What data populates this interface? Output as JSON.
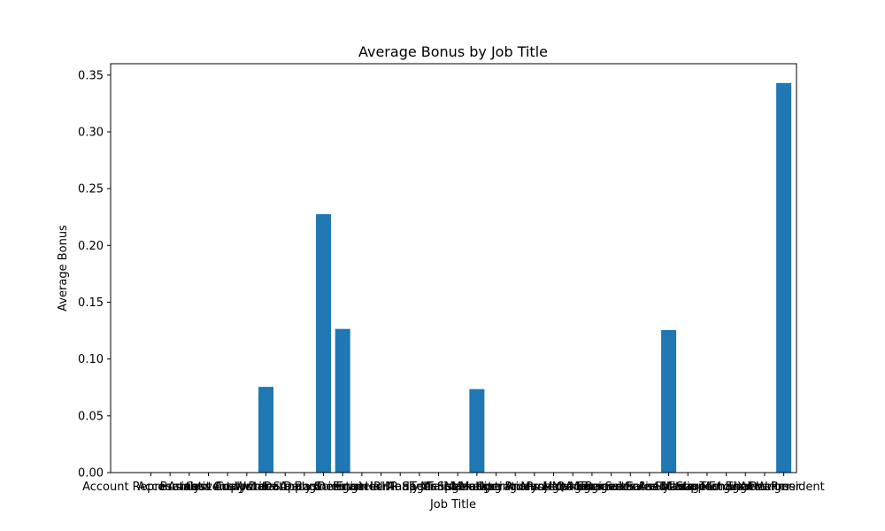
{
  "chart_data": {
    "type": "bar",
    "title": "Average Bonus by Job Title",
    "xlabel": "Job Title",
    "ylabel": "Average Bonus",
    "ylim": [
      0,
      0.36
    ],
    "yticks": [
      "0.00",
      "0.05",
      "0.10",
      "0.15",
      "0.20",
      "0.25",
      "0.30",
      "0.35"
    ],
    "ytick_values": [
      0,
      0.05,
      0.1,
      0.15,
      0.2,
      0.25,
      0.3,
      0.35
    ],
    "grid": false,
    "legend": "none",
    "categories": [
      "Account Representative",
      "Accountant",
      "Analyst",
      "Business Analyst",
      "Content Writer",
      "Copywriter",
      "Customer Support",
      "Data Analyst",
      "Data Engineer",
      "Data Scientist",
      "Designer",
      "Engineer",
      "Financial Analyst",
      "HR Manager",
      "HR Specialist",
      "IT Manager",
      "IT Specialist",
      "Manager",
      "Marketing Analyst",
      "Marketing Manager",
      "Operations Manager",
      "Product Manager",
      "Project Manager",
      "QA Engineer",
      "Recruiter",
      "Research Analyst",
      "Sales Associate",
      "Sales Manager",
      "Social Media Manager",
      "Software Engineer",
      "Support Engineer",
      "Technical Writer",
      "UX Designer",
      "Vice President"
    ],
    "values": [
      0,
      0,
      0,
      0,
      0,
      0,
      0.0755,
      0,
      0,
      0.2275,
      0.1265,
      0,
      0,
      0,
      0,
      0,
      0,
      0.0735,
      0,
      0,
      0,
      0,
      0,
      0,
      0,
      0,
      0,
      0.1255,
      0,
      0,
      0,
      0,
      0,
      0.343
    ],
    "bar_color": "#1f77b4"
  }
}
